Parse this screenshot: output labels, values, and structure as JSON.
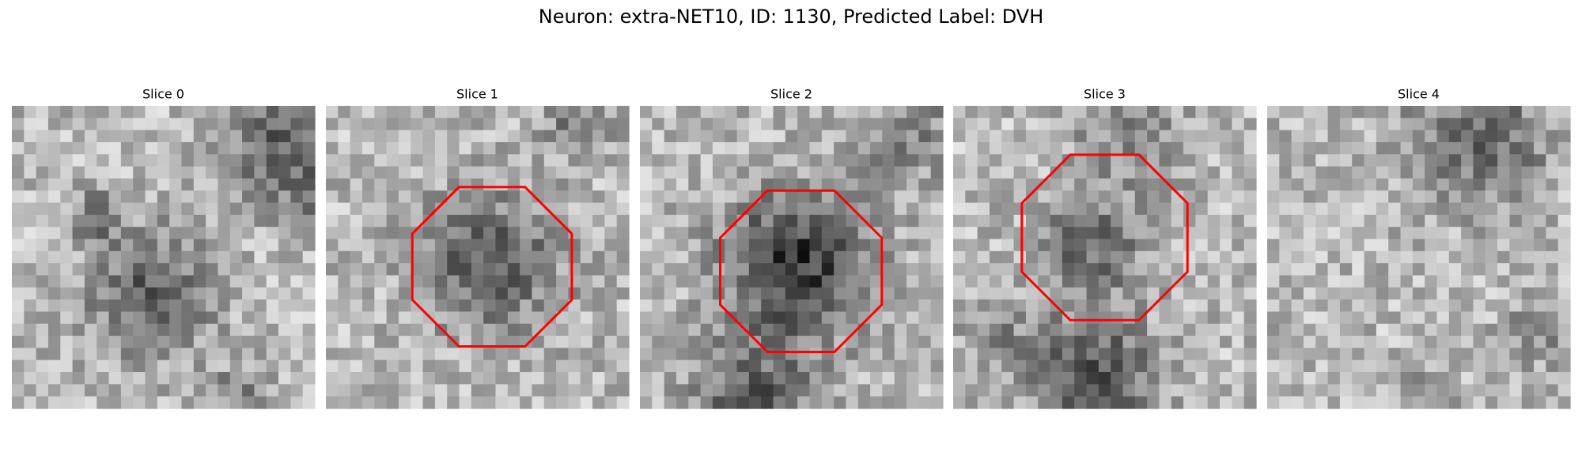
{
  "title": "Neuron: extra-NET10, ID: 1130, Predicted Label: DVH",
  "panels": [
    {
      "title": "Slice 0"
    },
    {
      "title": "Slice 1"
    },
    {
      "title": "Slice 2"
    },
    {
      "title": "Slice 3"
    },
    {
      "title": "Slice 4"
    }
  ]
}
